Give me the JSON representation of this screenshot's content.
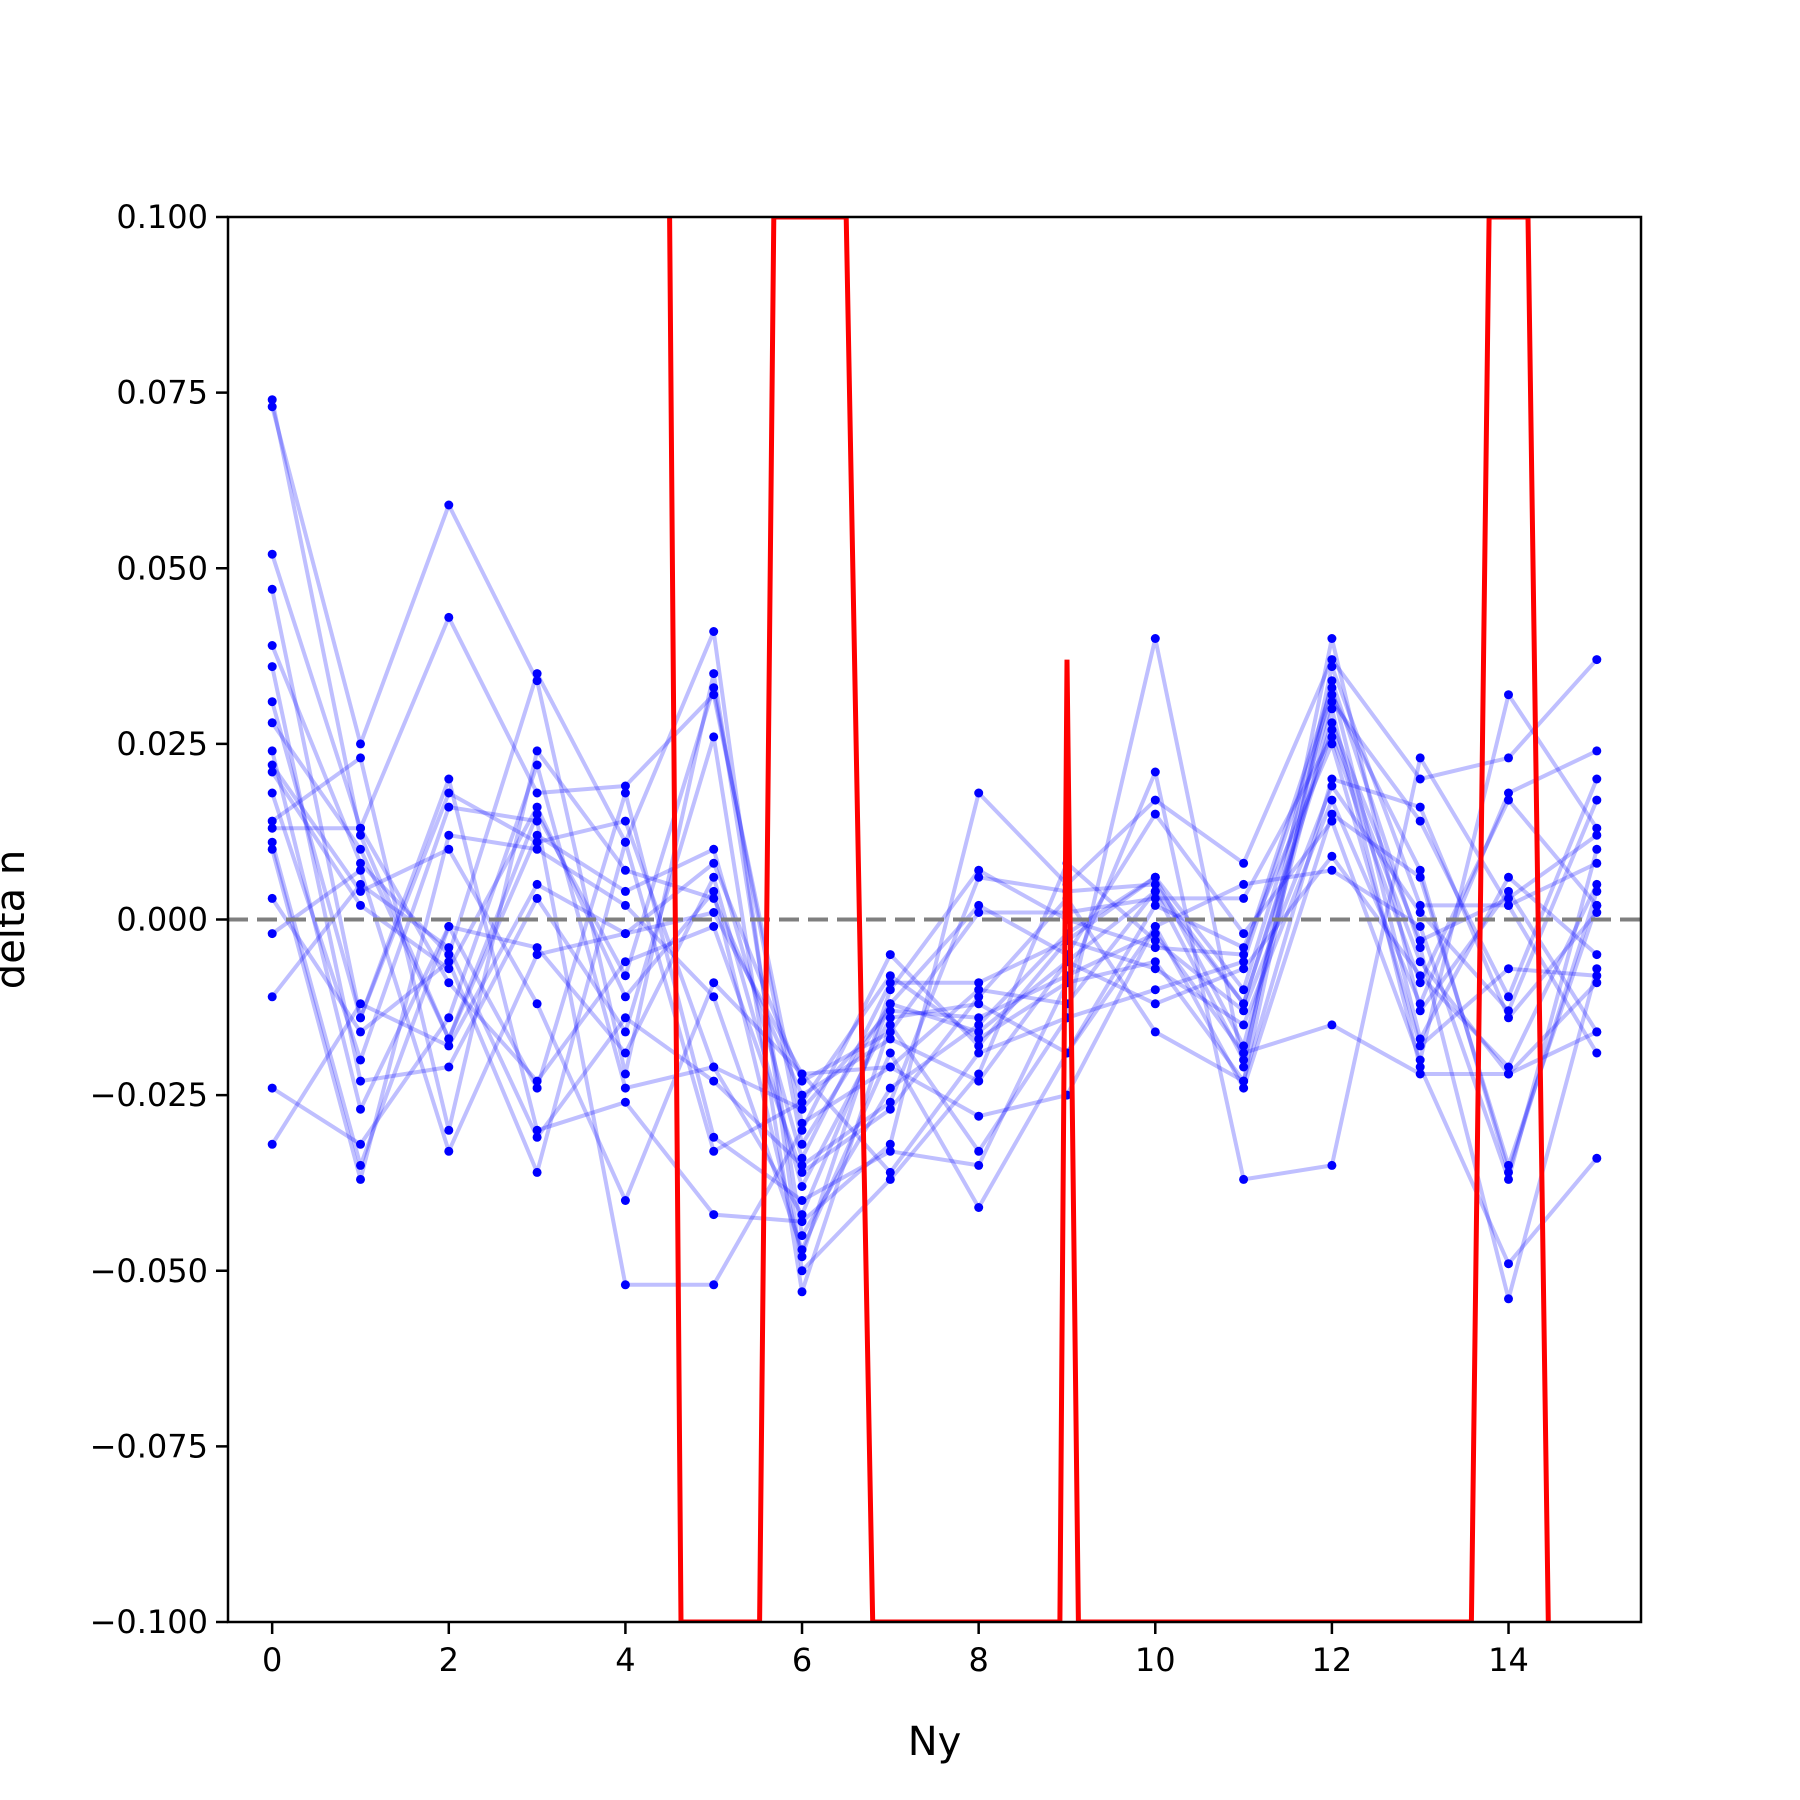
{
  "chart_data": {
    "type": "line",
    "title": "",
    "xlabel": "Ny",
    "ylabel": "delta n",
    "xlim": [
      -0.5,
      15.5
    ],
    "ylim": [
      -0.1,
      0.1
    ],
    "x_ticks": [
      0,
      2,
      4,
      6,
      8,
      10,
      12,
      14
    ],
    "y_ticks": [
      0.1,
      0.075,
      0.05,
      0.025,
      0.0,
      -0.025,
      -0.05,
      -0.075,
      -0.1
    ],
    "x_tick_labels": [
      "0",
      "2",
      "4",
      "6",
      "8",
      "10",
      "12",
      "14"
    ],
    "y_tick_labels": [
      "0.100",
      "0.075",
      "0.050",
      "0.025",
      "0.000",
      "−0.025",
      "−0.050",
      "−0.075",
      "−0.100"
    ],
    "grid": false,
    "legend": "none",
    "reference_line": {
      "y": 0.0,
      "style": "dashed",
      "color": "#7f7f7f"
    },
    "colors": {
      "sample_series": "#0000ff",
      "highlight_series": "#ff0000"
    },
    "x": [
      0,
      1,
      2,
      3,
      4,
      5,
      6,
      7,
      8,
      9,
      10,
      11,
      12,
      13,
      14,
      15
    ],
    "sample_series": [
      [
        0.074,
        0.012,
        -0.017,
        0.015,
        -0.008,
        0.033,
        -0.032,
        -0.012,
        -0.016,
        -0.006,
        0.004,
        -0.012,
        0.028,
        -0.003,
        0.003,
        0.012
      ],
      [
        0.073,
        0.025,
        0.059,
        0.034,
        -0.022,
        0.035,
        -0.045,
        -0.024,
        -0.015,
        -0.002,
        0.006,
        -0.01,
        0.031,
        0.014,
        -0.011,
        0.02
      ],
      [
        0.052,
        0.013,
        0.043,
        0.018,
        0.019,
        0.032,
        -0.029,
        -0.021,
        -0.01,
        -0.012,
        0.004,
        -0.02,
        0.034,
        -0.004,
        -0.054,
        -0.007
      ],
      [
        0.047,
        -0.014,
        0.018,
        0.011,
        0.014,
        -0.021,
        -0.042,
        -0.012,
        0.002,
        -0.005,
        0.015,
        -0.002,
        0.014,
        -0.02,
        0.032,
        0.013
      ],
      [
        0.039,
        0.008,
        -0.005,
        0.035,
        0.011,
        0.041,
        -0.05,
        -0.037,
        -0.022,
        0.008,
        -0.003,
        -0.013,
        0.019,
        0.001,
        -0.013,
        0.017
      ],
      [
        0.036,
        -0.023,
        -0.021,
        0.003,
        -0.016,
        0.026,
        -0.053,
        -0.015,
        -0.033,
        -0.014,
        0.04,
        -0.021,
        0.04,
        -0.013,
        0.004,
        -0.016
      ],
      [
        0.031,
        -0.014,
        0.02,
        -0.03,
        -0.026,
        -0.042,
        -0.043,
        -0.032,
        0.018,
        0.005,
        0.017,
        0.008,
        0.037,
        0.02,
        0.023,
        0.037
      ],
      [
        0.028,
        0.01,
        -0.017,
        0.012,
        0.004,
        0.01,
        -0.034,
        -0.009,
        -0.009,
        -0.003,
        -0.007,
        -0.015,
        0.017,
        -0.012,
        0.018,
        0.024
      ],
      [
        0.024,
        -0.027,
        -0.001,
        -0.004,
        -0.019,
        0.006,
        -0.038,
        -0.014,
        -0.012,
        -0.019,
        0.002,
        -0.004,
        0.025,
        -0.018,
        -0.007,
        -0.008
      ],
      [
        0.022,
        0.004,
        0.01,
        -0.012,
        -0.04,
        -0.009,
        -0.022,
        -0.021,
        -0.028,
        -0.025,
        -0.001,
        -0.024,
        0.015,
        0.006,
        -0.035,
        0.002
      ],
      [
        0.021,
        0.002,
        -0.007,
        0.016,
        -0.011,
        0.004,
        -0.048,
        -0.01,
        0.007,
        0.0,
        -0.004,
        -0.005,
        0.033,
        -0.017,
        0.006,
        -0.005
      ],
      [
        0.018,
        -0.02,
        0.016,
        0.014,
        -0.052,
        -0.052,
        -0.03,
        -0.005,
        -0.018,
        -0.003,
        0.006,
        -0.018,
        0.03,
        -0.021,
        -0.049,
        -0.034
      ],
      [
        0.014,
        0.023,
        -0.03,
        0.024,
        0.007,
        0.003,
        -0.025,
        -0.017,
        -0.023,
        -0.006,
        -0.012,
        -0.007,
        0.009,
        -0.008,
        -0.021,
        0.005
      ],
      [
        0.013,
        0.013,
        -0.009,
        -0.023,
        -0.006,
        -0.001,
        -0.036,
        -0.027,
        -0.011,
        0.003,
        -0.016,
        -0.023,
        0.036,
        0.002,
        0.002,
        -0.019
      ],
      [
        0.011,
        -0.035,
        -0.001,
        -0.024,
        0.018,
        -0.031,
        -0.04,
        -0.033,
        -0.035,
        -0.009,
        0.021,
        -0.037,
        -0.035,
        0.023,
        0.002,
        0.008
      ],
      [
        0.01,
        -0.037,
        0.012,
        0.01,
        0.002,
        -0.011,
        -0.047,
        -0.019,
        -0.041,
        -0.019,
        -0.001,
        0.005,
        0.007,
        -0.001,
        -0.037,
        0.01
      ],
      [
        0.003,
        -0.016,
        -0.006,
        -0.036,
        0.011,
        -0.033,
        -0.026,
        -0.008,
        -0.017,
        -0.009,
        -0.006,
        -0.023,
        0.02,
        0.016,
        -0.014,
        0.001
      ],
      [
        -0.002,
        0.007,
        -0.033,
        -0.005,
        -0.002,
        0.008,
        -0.023,
        -0.016,
        0.001,
        0.001,
        0.003,
        0.003,
        0.026,
        -0.009,
        0.017,
        0.002
      ],
      [
        -0.011,
        0.005,
        -0.004,
        -0.031,
        -0.014,
        -0.023,
        -0.035,
        -0.026,
        0.006,
        0.004,
        0.005,
        -0.012,
        0.027,
        -0.006,
        -0.022,
        -0.009
      ],
      [
        -0.024,
        -0.032,
        -0.014,
        0.022,
        -0.024,
        -0.021,
        -0.027,
        -0.013,
        -0.014,
        -0.008,
        -0.002,
        -0.019,
        -0.015,
        -0.022,
        -0.022,
        -0.016
      ],
      [
        -0.032,
        -0.012,
        -0.018,
        0.005,
        -0.002,
        0.001,
        -0.022,
        -0.036,
        -0.019,
        -0.014,
        -0.01,
        -0.006,
        0.032,
        0.007,
        -0.036,
        0.004
      ]
    ],
    "highlight_series": {
      "x": [
        4.5,
        4.63,
        5.52,
        5.68,
        6.5,
        6.8,
        8.92,
        9.0,
        9.13,
        13.58,
        13.78,
        14.22,
        14.45
      ],
      "y": [
        0.1,
        -0.1,
        -0.1,
        0.1,
        0.1,
        -0.1,
        -0.1,
        0.037,
        -0.1,
        -0.1,
        0.1,
        0.1,
        -0.1
      ]
    }
  }
}
